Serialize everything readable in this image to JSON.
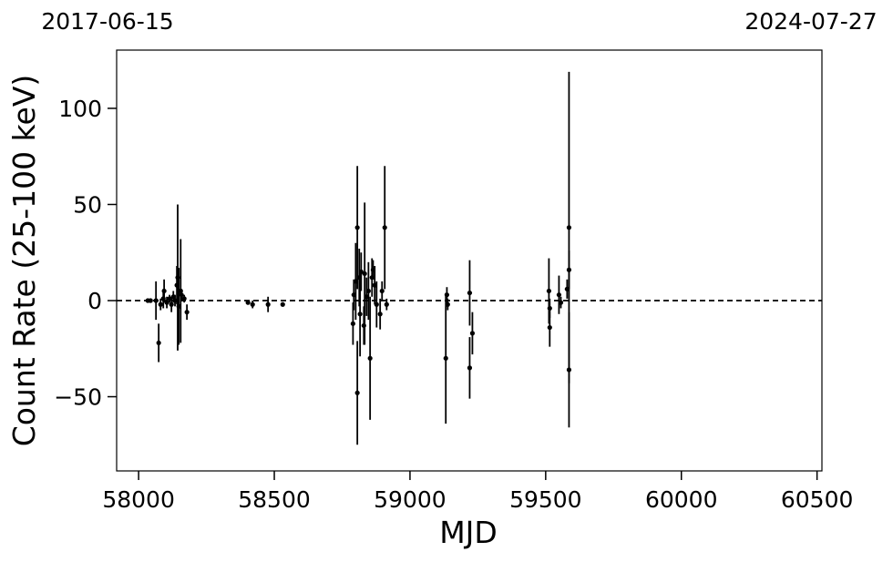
{
  "chart_data": {
    "type": "scatter",
    "xlabel": "MJD",
    "ylabel": "Count Rate (25-100 keV)",
    "start_label": "2017-06-15",
    "end_label": "2024-07-27",
    "xlim": [
      57919,
      60518
    ],
    "ylim": [
      -88.6,
      130.3
    ],
    "xticks": [
      58000,
      58500,
      59000,
      59500,
      60000,
      60500
    ],
    "yticks": [
      {
        "value": -50,
        "label": "−50"
      },
      0,
      50,
      100
    ],
    "hline": 0,
    "color": "#000000",
    "x": [
      58034,
      58044,
      58064,
      58074,
      58081,
      58091,
      58094,
      58104,
      58114,
      58121,
      58128,
      58134,
      58141,
      58144,
      58148,
      58155,
      58158,
      58168,
      58178,
      58403,
      58420,
      58477,
      58531,
      58790,
      58793,
      58800,
      58806,
      58806,
      58813,
      58816,
      58820,
      58830,
      58833,
      58840,
      58847,
      58853,
      58860,
      58864,
      58870,
      58877,
      58890,
      58897,
      58907,
      58914,
      59132,
      59136,
      59139,
      59220,
      59220,
      59230,
      59512,
      59515,
      59515,
      59549,
      59556,
      59579,
      59586,
      59586,
      59586
    ],
    "values": [
      0,
      0,
      0,
      -22,
      -2,
      1,
      5,
      -1,
      1,
      -2,
      2,
      0,
      8,
      12,
      -3,
      5,
      3,
      1,
      -6,
      -1,
      -2,
      -2,
      -2,
      -12,
      3,
      10,
      38,
      -48,
      12,
      -7,
      15,
      -13,
      14,
      2,
      5,
      -30,
      12,
      16,
      8,
      -2,
      -7,
      5,
      38,
      -2,
      -30,
      3,
      -2,
      4,
      -35,
      -17,
      5,
      -14,
      -4,
      3,
      -1,
      6,
      38,
      -36,
      16
    ],
    "errors": [
      1,
      1,
      10,
      10,
      3,
      5,
      6,
      3,
      2,
      4,
      3,
      3,
      10,
      38,
      20,
      27,
      3,
      2,
      4,
      1,
      2,
      4,
      1,
      11,
      8,
      20,
      32,
      27,
      15,
      22,
      10,
      10,
      37,
      10,
      15,
      32,
      10,
      5,
      10,
      12,
      8,
      5,
      32,
      3,
      34,
      4,
      3,
      17,
      16,
      11,
      17,
      10,
      5,
      10,
      3,
      5,
      81,
      30,
      10
    ]
  }
}
